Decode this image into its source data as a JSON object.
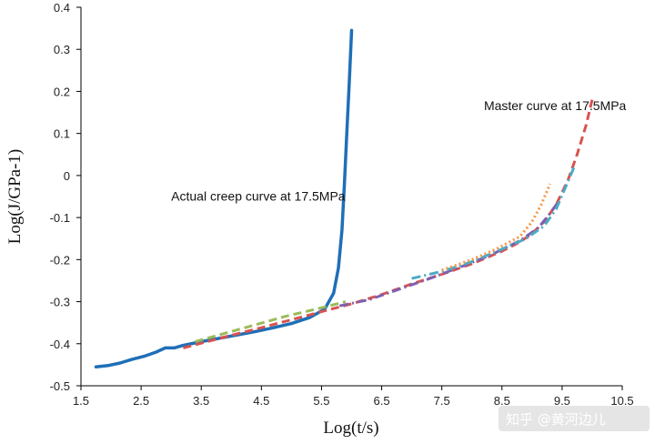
{
  "chart_data": {
    "type": "line",
    "title": "",
    "xlabel": "Log(t/s)",
    "ylabel": "Log(J/GPa-1)",
    "xlim": [
      1.5,
      10.5
    ],
    "ylim": [
      -0.5,
      0.4
    ],
    "xticks": [
      1.5,
      2.5,
      3.5,
      4.5,
      5.5,
      6.5,
      7.5,
      8.5,
      9.5,
      10.5
    ],
    "yticks": [
      -0.5,
      -0.4,
      -0.3,
      -0.2,
      -0.1,
      0,
      0.1,
      0.2,
      0.3,
      0.4
    ],
    "xtick_labels": [
      "1.5",
      "2.5",
      "3.5",
      "4.5",
      "5.5",
      "6.5",
      "7.5",
      "8.5",
      "9.5",
      "10.5"
    ],
    "ytick_labels": [
      "-0.5",
      "-0.4",
      "-0.3",
      "-0.2",
      "-0.1",
      "0",
      "0.1",
      "0.2",
      "0.3",
      "0.4"
    ],
    "grid": false,
    "annotations": [
      {
        "text": "Actual creep curve at 17.5MPa",
        "x": 3.0,
        "y": -0.06
      },
      {
        "text": "Master curve at 17.5MPa",
        "x": 8.2,
        "y": 0.155
      }
    ],
    "series": [
      {
        "color": "#1f6fb8",
        "style": "solid",
        "x": [
          1.75,
          1.95,
          2.15,
          2.35,
          2.55,
          2.75,
          2.9,
          3.05,
          3.2,
          3.5,
          3.8,
          4.1,
          4.4,
          4.7,
          5.0,
          5.3,
          5.55,
          5.7,
          5.78,
          5.84,
          5.88,
          5.92,
          5.96,
          6.0
        ],
        "y": [
          -0.455,
          -0.452,
          -0.446,
          -0.437,
          -0.43,
          -0.42,
          -0.41,
          -0.41,
          -0.404,
          -0.395,
          -0.387,
          -0.379,
          -0.371,
          -0.362,
          -0.352,
          -0.338,
          -0.318,
          -0.28,
          -0.22,
          -0.13,
          -0.02,
          0.1,
          0.22,
          0.345
        ]
      },
      {
        "color": "#d9534f",
        "style": "dash",
        "x": [
          3.2,
          3.6,
          4.0,
          4.5,
          5.0,
          5.5,
          6.0,
          6.5,
          7.0,
          7.5,
          8.0,
          8.5,
          8.8,
          9.0,
          9.2,
          9.4,
          9.6,
          9.75,
          9.9,
          10.0
        ],
        "y": [
          -0.41,
          -0.395,
          -0.38,
          -0.362,
          -0.343,
          -0.324,
          -0.305,
          -0.283,
          -0.258,
          -0.235,
          -0.21,
          -0.18,
          -0.158,
          -0.138,
          -0.11,
          -0.07,
          -0.01,
          0.05,
          0.12,
          0.18
        ]
      },
      {
        "color": "#9bbb59",
        "style": "dash",
        "x": [
          3.4,
          3.9,
          4.4,
          4.9,
          5.4,
          5.9
        ],
        "y": [
          -0.395,
          -0.375,
          -0.355,
          -0.335,
          -0.318,
          -0.3
        ]
      },
      {
        "color": "#7f5fb0",
        "style": "dashdot",
        "x": [
          5.8,
          6.3,
          6.8,
          7.3,
          7.8,
          8.3,
          8.8,
          9.1,
          9.3,
          9.45
        ],
        "y": [
          -0.31,
          -0.295,
          -0.27,
          -0.245,
          -0.218,
          -0.19,
          -0.155,
          -0.125,
          -0.09,
          -0.06
        ]
      },
      {
        "color": "#4bacc6",
        "style": "dashdot",
        "x": [
          7.0,
          7.5,
          8.0,
          8.5,
          8.9,
          9.2,
          9.4,
          9.55,
          9.7
        ],
        "y": [
          -0.245,
          -0.228,
          -0.205,
          -0.175,
          -0.15,
          -0.12,
          -0.08,
          -0.03,
          0.02
        ]
      },
      {
        "color": "#f79646",
        "style": "dot",
        "x": [
          7.5,
          8.0,
          8.4,
          8.8,
          9.0,
          9.15,
          9.3
        ],
        "y": [
          -0.225,
          -0.2,
          -0.175,
          -0.145,
          -0.11,
          -0.07,
          -0.02
        ]
      }
    ]
  },
  "watermark": "知乎 @黄河边儿"
}
